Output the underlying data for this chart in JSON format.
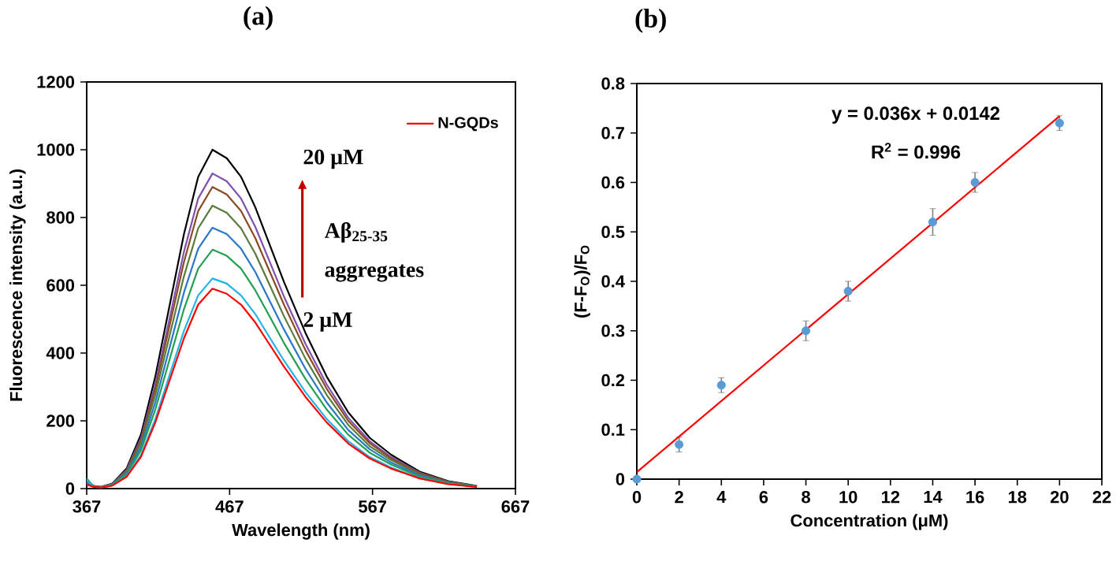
{
  "chart_data": [
    {
      "type": "line",
      "title": "(a)",
      "xlabel": "Wavelength (nm)",
      "ylabel": "Fluorescence intensity (a.u.)",
      "x": [
        367,
        372,
        377,
        385,
        395,
        405,
        415,
        425,
        435,
        445,
        455,
        465,
        475,
        485,
        495,
        505,
        520,
        535,
        550,
        565,
        580,
        600,
        620,
        640
      ],
      "series": [
        {
          "color": "#000000",
          "values": [
            20,
            8,
            5,
            15,
            60,
            160,
            330,
            540,
            750,
            920,
            1000,
            975,
            920,
            830,
            720,
            610,
            460,
            330,
            225,
            150,
            100,
            50,
            22,
            8
          ]
        },
        {
          "color": "#8050b0",
          "values": [
            19,
            7,
            5,
            14,
            56,
            149,
            307,
            502,
            698,
            856,
            930,
            907,
            856,
            772,
            670,
            567,
            428,
            307,
            209,
            140,
            93,
            47,
            20,
            7
          ]
        },
        {
          "color": "#8b4a20",
          "values": [
            18,
            7,
            4,
            13,
            53,
            142,
            294,
            481,
            668,
            819,
            890,
            868,
            819,
            739,
            641,
            543,
            409,
            294,
            200,
            134,
            89,
            45,
            20,
            7
          ]
        },
        {
          "color": "#5a7a3a",
          "values": [
            17,
            7,
            4,
            13,
            50,
            134,
            276,
            451,
            626,
            768,
            835,
            814,
            768,
            693,
            601,
            509,
            384,
            276,
            188,
            125,
            84,
            42,
            18,
            7
          ]
        },
        {
          "color": "#2878c8",
          "values": [
            15,
            6,
            4,
            12,
            46,
            123,
            254,
            416,
            578,
            708,
            770,
            751,
            708,
            639,
            554,
            470,
            354,
            254,
            173,
            116,
            77,
            39,
            17,
            6
          ]
        },
        {
          "color": "#22a050",
          "values": [
            30,
            6,
            4,
            11,
            42,
            113,
            233,
            381,
            529,
            649,
            705,
            687,
            649,
            585,
            508,
            430,
            324,
            233,
            159,
            106,
            71,
            35,
            16,
            6
          ]
        },
        {
          "color": "#22b4e8",
          "values": [
            25,
            5,
            3,
            9,
            37,
            99,
            205,
            335,
            465,
            570,
            620,
            605,
            570,
            515,
            446,
            378,
            285,
            205,
            140,
            93,
            62,
            31,
            14,
            5
          ]
        },
        {
          "name": "N-GQDs",
          "color": "#ff0000",
          "values": [
            12,
            5,
            3,
            9,
            35,
            94,
            195,
            319,
            443,
            543,
            590,
            575,
            543,
            490,
            425,
            360,
            271,
            195,
            133,
            89,
            59,
            30,
            13,
            5
          ]
        }
      ],
      "xlim": [
        367,
        667
      ],
      "xticks": [
        367,
        467,
        567,
        667
      ],
      "ylim": [
        0,
        1200
      ],
      "yticks": [
        0,
        200,
        400,
        600,
        800,
        1000,
        1200
      ],
      "legend": "top right",
      "annotations": [
        "20 μM",
        "Aβ$_{25-35}$",
        "aggregates",
        "2 μM"
      ]
    },
    {
      "type": "scatter",
      "title": "(b)",
      "xlabel": "Concentration (μM)",
      "ylabel": "(F-F$_{O}$)/F$_{O}$",
      "x": [
        0,
        2,
        4,
        8,
        10,
        14,
        16,
        20
      ],
      "series": [
        {
          "color": "#5b9bd5",
          "marker": "circle",
          "values": [
            0,
            0.07,
            0.19,
            0.3,
            0.38,
            0.52,
            0.6,
            0.72
          ],
          "errors": [
            null,
            0.015,
            0.015,
            0.02,
            0.02,
            0.027,
            0.02,
            0.015
          ]
        },
        {
          "type": "line",
          "marker": "none",
          "color": "#ff0000",
          "x": [
            0,
            20
          ],
          "values": [
            0.014,
            0.734
          ]
        }
      ],
      "xlim": [
        0,
        22
      ],
      "xticks": [
        0,
        2,
        4,
        6,
        8,
        10,
        12,
        14,
        16,
        18,
        20,
        22
      ],
      "ylim": [
        0,
        0.8
      ],
      "yticks": [
        0,
        0.1,
        0.2,
        0.3,
        0.4,
        0.5,
        0.6,
        0.7,
        0.8
      ],
      "annotations": [
        "y = 0.036x + 0.0142",
        "R$^{2}$ = 0.996"
      ]
    }
  ]
}
